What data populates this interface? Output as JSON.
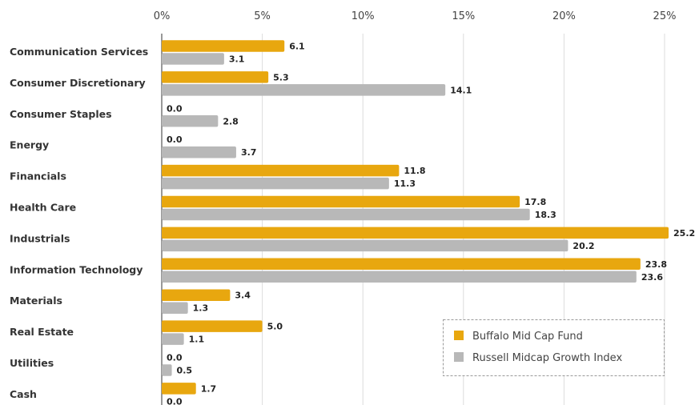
{
  "chart_data": {
    "type": "bar",
    "orientation": "horizontal",
    "title": "",
    "xlabel": "",
    "ylabel": "",
    "xlim": [
      0,
      25
    ],
    "x_ticks": [
      0,
      5,
      10,
      15,
      20,
      25
    ],
    "x_tick_labels": [
      "0%",
      "5%",
      "10%",
      "15%",
      "20%",
      "25%"
    ],
    "x_axis_position": "top",
    "grid": true,
    "legend_position": "bottom-right",
    "categories": [
      "Communication Services",
      "Consumer Discretionary",
      "Consumer Staples",
      "Energy",
      "Financials",
      "Health Care",
      "Industrials",
      "Information Technology",
      "Materials",
      "Real Estate",
      "Utilities",
      "Cash"
    ],
    "series": [
      {
        "name": "Buffalo Mid Cap Fund",
        "color": "#E8A70F",
        "values": [
          6.1,
          5.3,
          0.0,
          0.0,
          11.8,
          17.8,
          25.2,
          23.8,
          3.4,
          5.0,
          0.0,
          1.7
        ],
        "value_labels": [
          "6.1",
          "5.3",
          "0.0",
          "0.0",
          "11.8",
          "17.8",
          "25.2",
          "23.8",
          "3.4",
          "5.0",
          "0.0",
          "1.7"
        ]
      },
      {
        "name": "Russell Midcap Growth Index",
        "color": "#B8B8B8",
        "values": [
          3.1,
          14.1,
          2.8,
          3.7,
          11.3,
          18.3,
          20.2,
          23.6,
          1.3,
          1.1,
          0.5,
          0.0
        ],
        "value_labels": [
          "3.1",
          "14.1",
          "2.8",
          "3.7",
          "11.3",
          "18.3",
          "20.2",
          "23.6",
          "1.3",
          "1.1",
          "0.5",
          "0.0"
        ]
      }
    ]
  }
}
